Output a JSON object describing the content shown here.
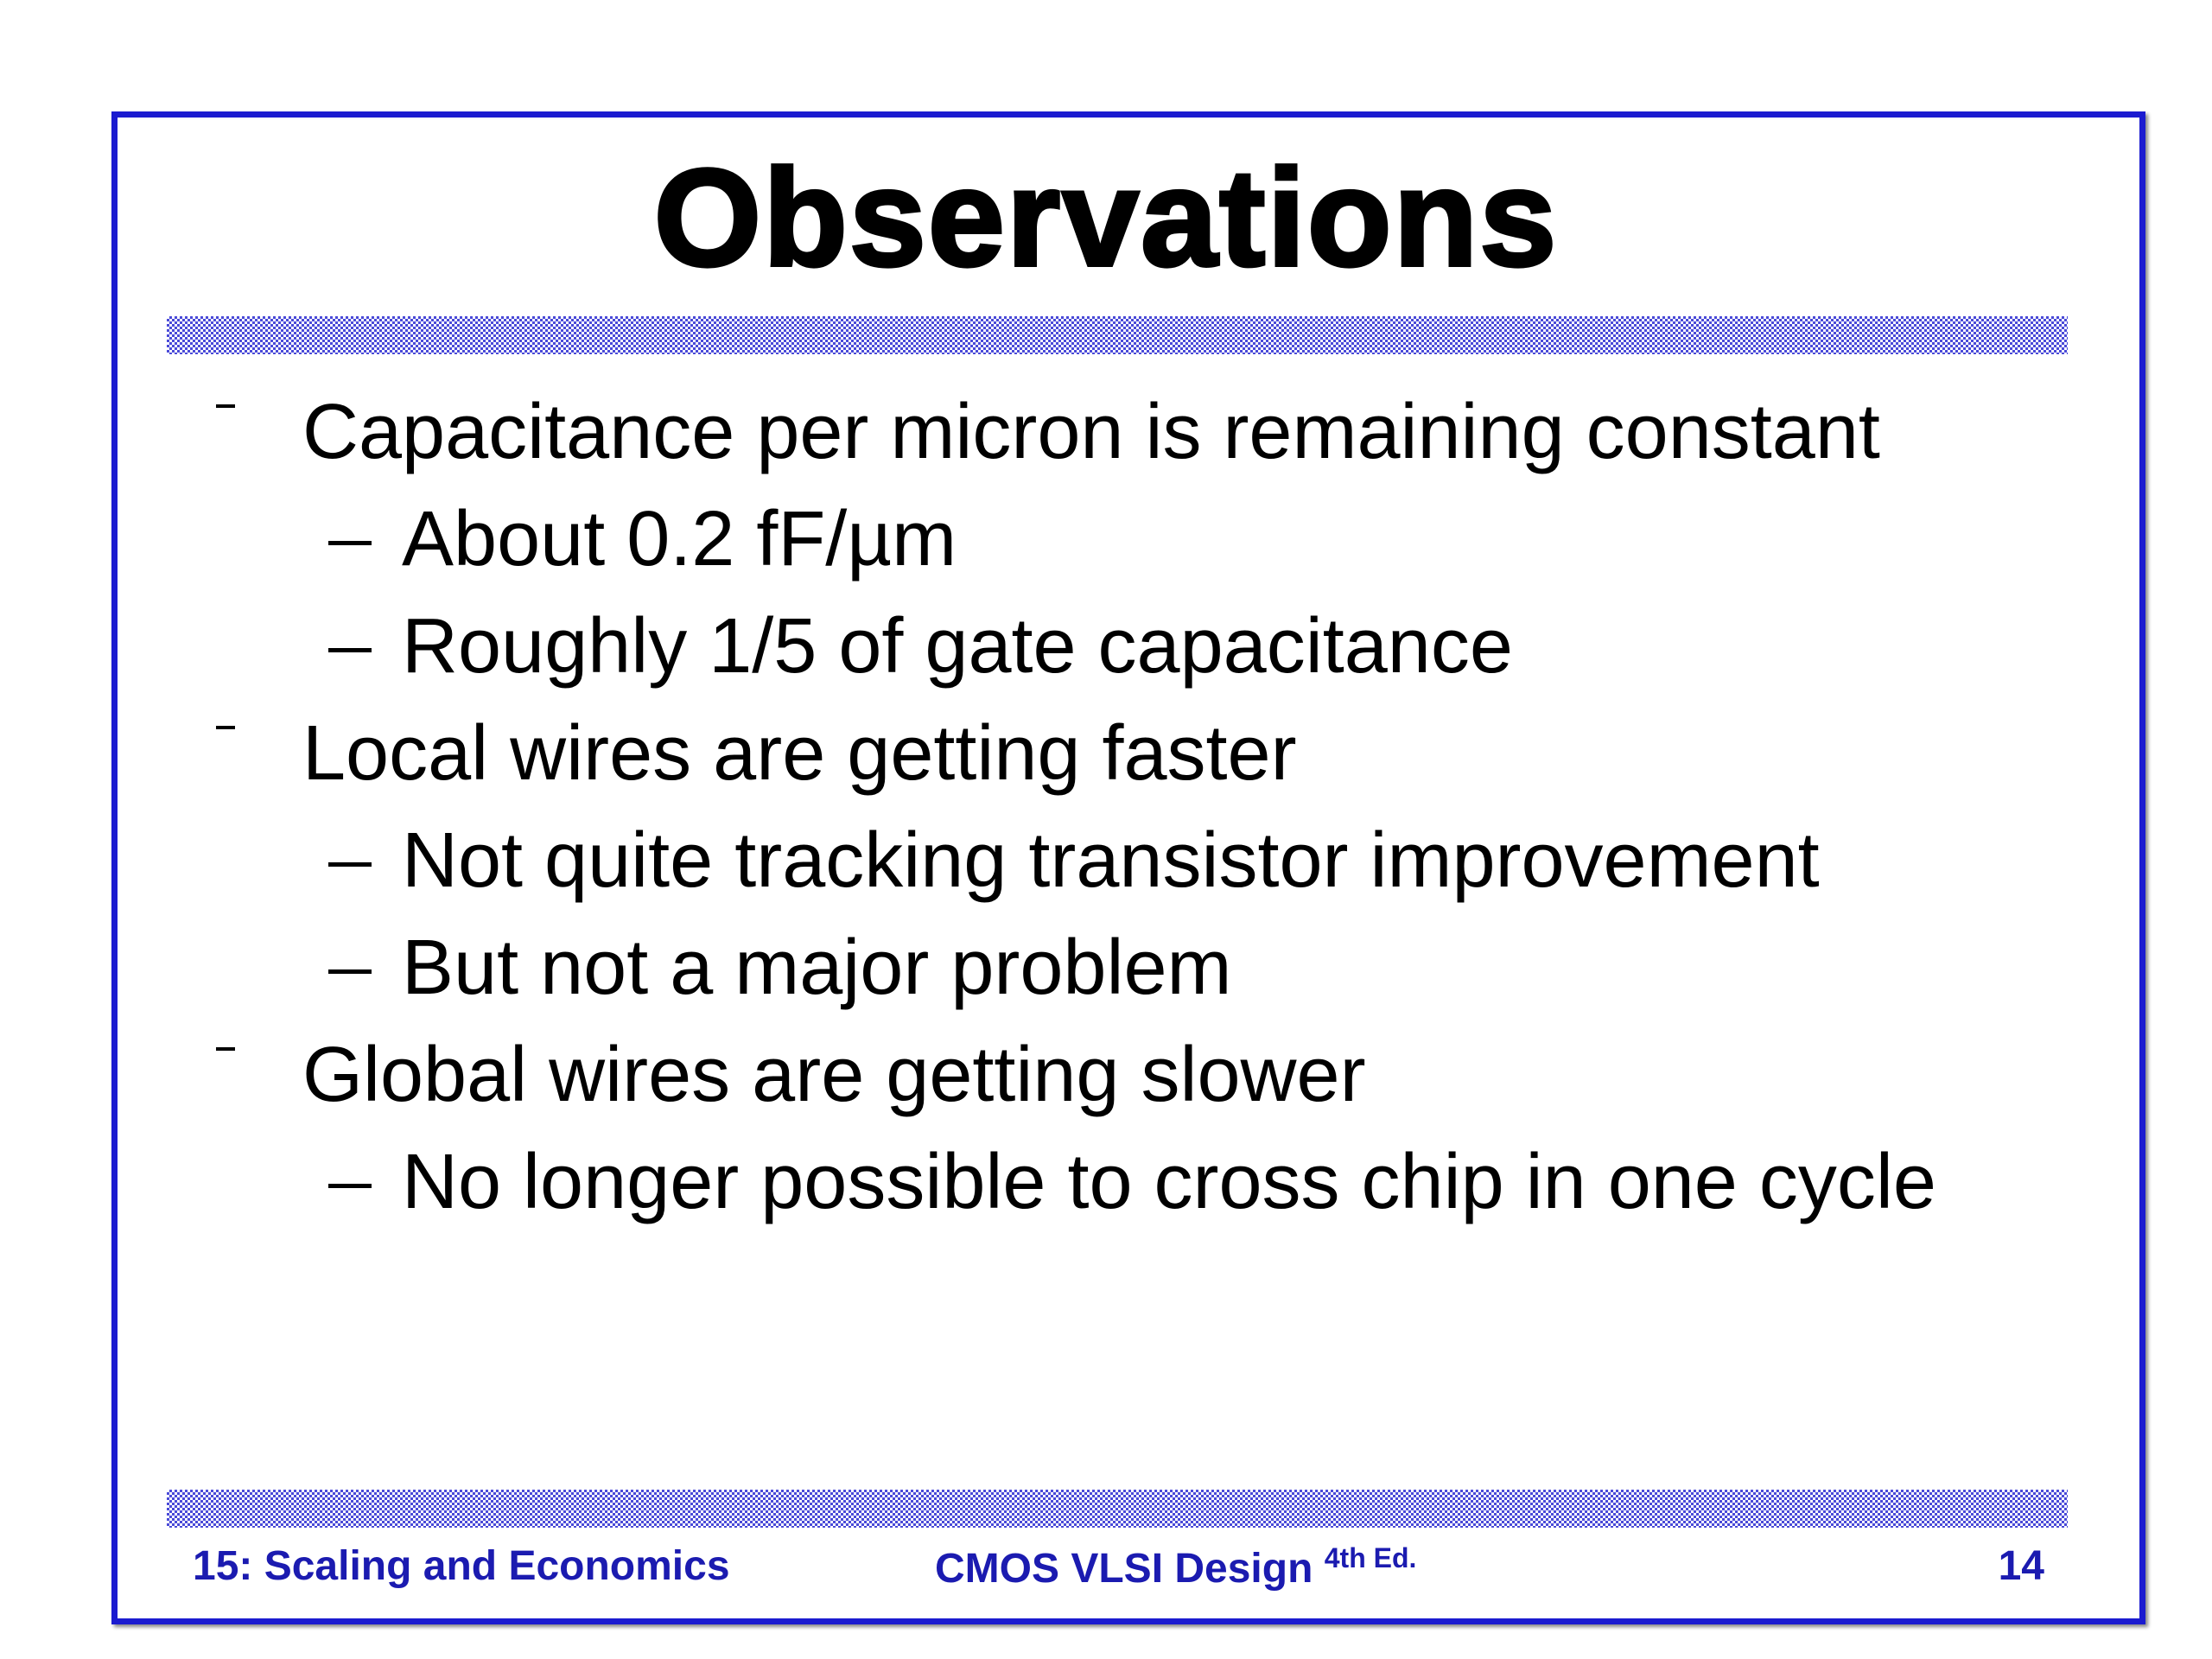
{
  "title": "Observations",
  "bullets": [
    {
      "text": "Capacitance per micron is remaining constant",
      "subitems": [
        "About 0.2 fF/µm",
        "Roughly 1/5 of gate capacitance"
      ]
    },
    {
      "text": "Local wires are getting faster",
      "subitems": [
        "Not quite tracking transistor improvement",
        "But not a major problem"
      ]
    },
    {
      "text": "Global wires are getting slower",
      "subitems": [
        "No longer possible to cross chip in one cycle"
      ]
    }
  ],
  "footer": {
    "left": "15: Scaling and Economics",
    "center": "CMOS VLSI Design",
    "center_superscript": "4th Ed.",
    "right": "14"
  }
}
